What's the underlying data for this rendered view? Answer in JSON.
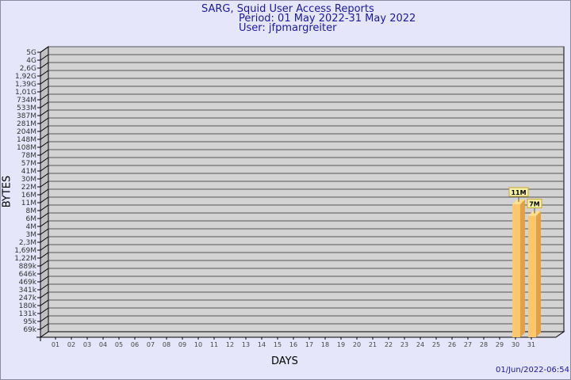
{
  "header": {
    "title": "SARG, Squid User Access Reports",
    "period": "Period: 01 May 2022-31 May 2022",
    "user": "User: jfpmargreiter"
  },
  "footer": {
    "timestamp": "01/Jun/2022-06:54"
  },
  "chart_data": {
    "type": "bar",
    "xlabel": "DAYS",
    "ylabel": "BYTES",
    "y_scale": "log",
    "grid": true,
    "y_ticks": [
      "5G",
      "4G",
      "2,6G",
      "1,92G",
      "1,39G",
      "1,01G",
      "734M",
      "533M",
      "387M",
      "281M",
      "204M",
      "148M",
      "108M",
      "78M",
      "57M",
      "41M",
      "30M",
      "22M",
      "16M",
      "11M",
      "8M",
      "6M",
      "4M",
      "3M",
      "2,3M",
      "1,69M",
      "1,22M",
      "889k",
      "646k",
      "469k",
      "341k",
      "247k",
      "180k",
      "131k",
      "95k",
      "69k"
    ],
    "categories": [
      "01",
      "02",
      "03",
      "04",
      "05",
      "06",
      "07",
      "08",
      "09",
      "10",
      "11",
      "12",
      "13",
      "14",
      "15",
      "16",
      "17",
      "18",
      "19",
      "20",
      "21",
      "22",
      "23",
      "24",
      "25",
      "26",
      "27",
      "28",
      "29",
      "30",
      "31"
    ],
    "bars": [
      {
        "category": "30",
        "label": "11M",
        "value": 11000000
      },
      {
        "category": "31",
        "label": "7M",
        "value": 7000000
      }
    ],
    "colors": {
      "bar": "#ffc76a",
      "bar_side": "#dea24a",
      "bar_top": "#ffe08a",
      "plot_bg": "#d3d3d3",
      "label_bg": "#f5f0a8"
    }
  }
}
